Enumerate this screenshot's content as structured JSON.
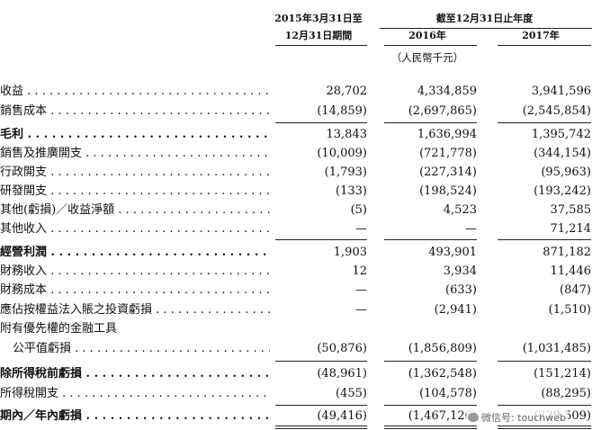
{
  "header": {
    "col1_line1": "2015年3月31日至",
    "col1_line2": "12月31日期間",
    "group_title": "截至12月31日止年度",
    "col2": "2016年",
    "col3": "2017年",
    "unit": "（人民幣千元）"
  },
  "rows": [
    {
      "label": "收益",
      "v1": "28,702",
      "v2": "4,334,859",
      "v3": "3,941,596"
    },
    {
      "label": "銷售成本",
      "v1": "(14,859)",
      "v2": "(2,697,865)",
      "v3": "(2,545,854)"
    },
    {
      "label": "毛利",
      "v1": "13,843",
      "v2": "1,636,994",
      "v3": "1,395,742"
    },
    {
      "label": "銷售及推廣開支",
      "v1": "(10,009)",
      "v2": "(721,778)",
      "v3": "(344,154)"
    },
    {
      "label": "行政開支",
      "v1": "(1,793)",
      "v2": "(227,314)",
      "v3": "(95,963)"
    },
    {
      "label": "研發開支",
      "v1": "(133)",
      "v2": "(198,524)",
      "v3": "(193,242)"
    },
    {
      "label": "其他(虧損)／收益淨額",
      "v1": "(5)",
      "v2": "4,523",
      "v3": "37,585"
    },
    {
      "label": "其他收入",
      "v1": "—",
      "v2": "—",
      "v3": "71,214"
    },
    {
      "label": "經營利潤",
      "v1": "1,903",
      "v2": "493,901",
      "v3": "871,182"
    },
    {
      "label": "財務收入",
      "v1": "12",
      "v2": "3,934",
      "v3": "11,446"
    },
    {
      "label": "財務成本",
      "v1": "—",
      "v2": "(633)",
      "v3": "(847)"
    },
    {
      "label": "應佔按權益法入賬之投資虧損",
      "v1": "—",
      "v2": "(2,941)",
      "v3": "(1,510)"
    },
    {
      "label": "附有優先權的金融工具",
      "v1": "",
      "v2": "",
      "v3": ""
    },
    {
      "label": "公平值虧損",
      "v1": "(50,876)",
      "v2": "(1,856,809)",
      "v3": "(1,031,485)"
    },
    {
      "label": "除所得稅前虧損",
      "v1": "(48,961)",
      "v2": "(1,362,548)",
      "v3": "(151,214)"
    },
    {
      "label": "所得稅開支",
      "v1": "(455)",
      "v2": "(104,578)",
      "v3": "(88,295)"
    },
    {
      "label": "期內／年內虧損",
      "v1": "(49,416)",
      "v2": "(1,467,126)",
      "v3": "(239,509)"
    }
  ],
  "watermark": {
    "text": "微信号: touchweb"
  }
}
